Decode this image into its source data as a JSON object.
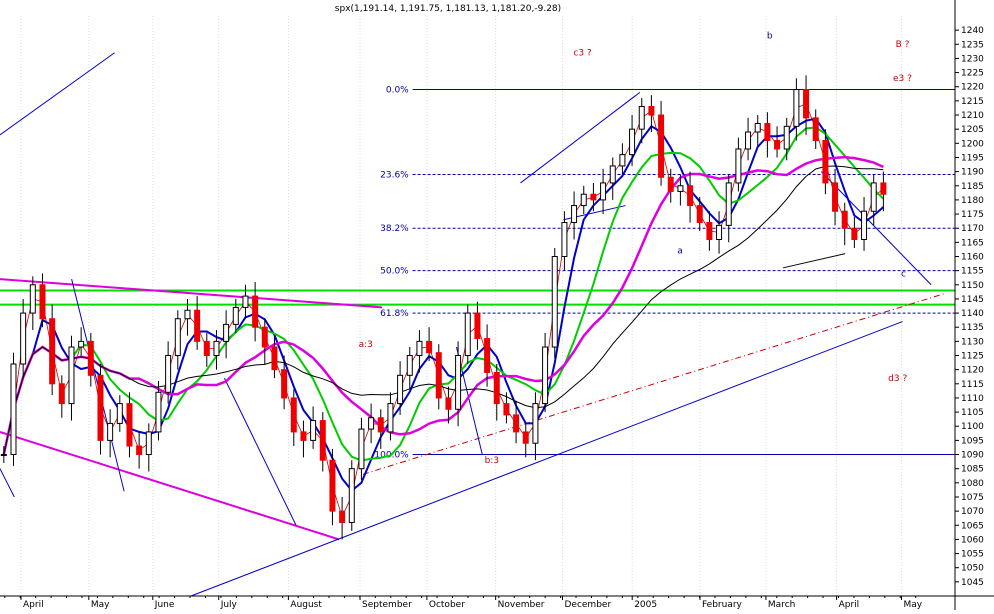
{
  "chart_data": {
    "type": "candlestick",
    "symbol": "spx",
    "title": "spx(1,191.14, 1,191.75, 1,181.13, 1,181.20,-9.28)",
    "ylim": [
      1040,
      1245
    ],
    "y_ticks": [
      1045,
      1050,
      1055,
      1060,
      1065,
      1070,
      1075,
      1080,
      1085,
      1090,
      1095,
      1100,
      1105,
      1110,
      1115,
      1120,
      1125,
      1130,
      1135,
      1140,
      1145,
      1150,
      1155,
      1160,
      1165,
      1170,
      1175,
      1180,
      1185,
      1190,
      1195,
      1200,
      1205,
      1210,
      1215,
      1220,
      1225,
      1230,
      1235,
      1240
    ],
    "x_labels": [
      {
        "label": "April",
        "pos": 0.022
      },
      {
        "label": "May",
        "pos": 0.093
      },
      {
        "label": "June",
        "pos": 0.16
      },
      {
        "label": "July",
        "pos": 0.229
      },
      {
        "label": "August",
        "pos": 0.302
      },
      {
        "label": "September",
        "pos": 0.377
      },
      {
        "label": "October",
        "pos": 0.447
      },
      {
        "label": "November",
        "pos": 0.519
      },
      {
        "label": "December",
        "pos": 0.589
      },
      {
        "label": "2005",
        "pos": 0.662
      },
      {
        "label": "February",
        "pos": 0.733
      },
      {
        "label": "March",
        "pos": 0.802
      },
      {
        "label": "April",
        "pos": 0.876
      },
      {
        "label": "May",
        "pos": 0.944
      }
    ],
    "fib_levels": [
      {
        "label": "0.0%",
        "value": 1219
      },
      {
        "label": "23.6%",
        "value": 1189
      },
      {
        "label": "38.2%",
        "value": 1170
      },
      {
        "label": "50.0%",
        "value": 1155
      },
      {
        "label": "61.8%",
        "value": 1140
      },
      {
        "label": "100.0%",
        "value": 1090
      }
    ],
    "green_levels": [
      1148,
      1143
    ],
    "annotations": [
      {
        "text": "c3 ?",
        "x": 0.61,
        "y": 1231,
        "color": "#cc0000"
      },
      {
        "text": "b",
        "x": 0.806,
        "y": 1237,
        "color": "#000080"
      },
      {
        "text": "B ?",
        "x": 0.945,
        "y": 1234,
        "color": "#cc0000"
      },
      {
        "text": "e3 ?",
        "x": 0.945,
        "y": 1222,
        "color": "#cc0000"
      },
      {
        "text": "a",
        "x": 0.712,
        "y": 1161,
        "color": "#000080"
      },
      {
        "text": "c",
        "x": 0.946,
        "y": 1153,
        "color": "#000080"
      },
      {
        "text": "a:3",
        "x": 0.383,
        "y": 1128,
        "color": "#cc0000"
      },
      {
        "text": "d3 ?",
        "x": 0.94,
        "y": 1116,
        "color": "#cc0000"
      },
      {
        "text": "b:3",
        "x": 0.515,
        "y": 1087,
        "color": "#cc0000"
      }
    ],
    "series": [
      {
        "name": "close",
        "values": [
          1090,
          1122,
          1140,
          1150,
          1138,
          1115,
          1108,
          1128,
          1130,
          1118,
          1095,
          1101,
          1108,
          1093,
          1090,
          1098,
          1112,
          1125,
          1138,
          1141,
          1130,
          1125,
          1130,
          1136,
          1142,
          1146,
          1135,
          1128,
          1120,
          1110,
          1098,
          1095,
          1102,
          1088,
          1070,
          1066,
          1085,
          1099,
          1103,
          1098,
          1108,
          1118,
          1125,
          1130,
          1126,
          1110,
          1106,
          1125,
          1140,
          1131,
          1119,
          1108,
          1104,
          1098,
          1094,
          1108,
          1128,
          1160,
          1172,
          1178,
          1182,
          1180,
          1186,
          1192,
          1196,
          1205,
          1213,
          1210,
          1188,
          1183,
          1185,
          1178,
          1172,
          1166,
          1171,
          1186,
          1198,
          1204,
          1207,
          1201,
          1198,
          1206,
          1219,
          1209,
          1201,
          1186,
          1176,
          1170,
          1166,
          1176,
          1186,
          1182
        ]
      }
    ]
  }
}
